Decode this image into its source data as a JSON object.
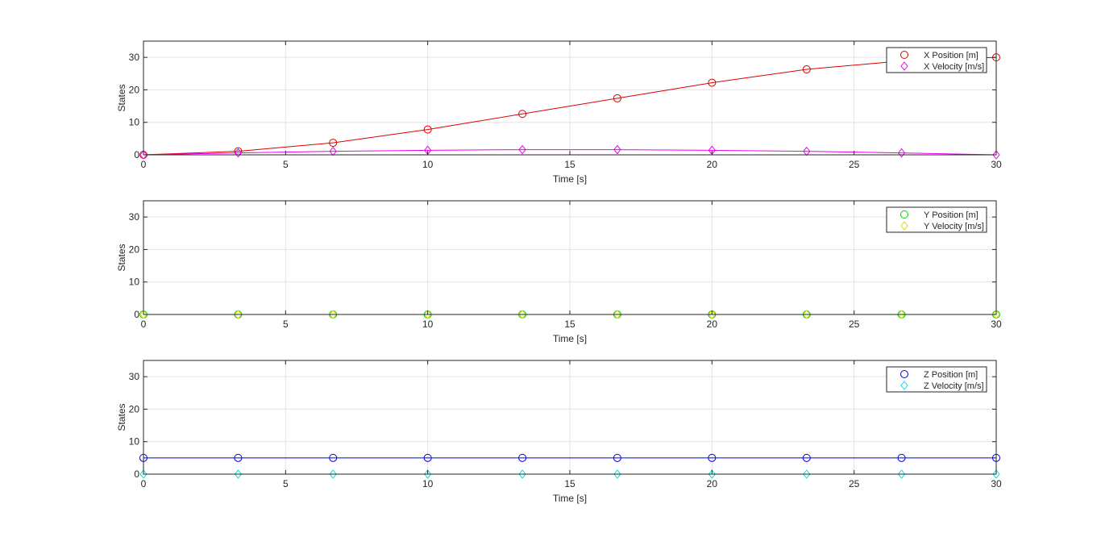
{
  "colors": {
    "x_position": "#dd0000",
    "x_velocity": "#ee00ee",
    "y_position": "#00cc00",
    "y_velocity": "#dddd00",
    "z_position": "#0000dd",
    "z_velocity": "#00dddd",
    "grid": "#e3e3e3",
    "axes": "#262626"
  },
  "chart_data": [
    {
      "type": "line",
      "xlabel": "Time [s]",
      "ylabel": "States",
      "xlim": [
        0,
        30
      ],
      "ylim": [
        0,
        35
      ],
      "xticks": [
        0,
        5,
        10,
        15,
        20,
        25,
        30
      ],
      "yticks": [
        0,
        10,
        20,
        30
      ],
      "grid": true,
      "legend_position": "top-right",
      "series": [
        {
          "name": "X Position [m]",
          "marker": "circle",
          "color_key": "x_position",
          "x": [
            0,
            3.33,
            6.67,
            10,
            13.33,
            16.67,
            20,
            23.33,
            26.67,
            30
          ],
          "y": [
            0,
            1.1,
            3.7,
            7.8,
            12.6,
            17.4,
            22.2,
            26.3,
            28.9,
            30
          ]
        },
        {
          "name": "X Velocity [m/s]",
          "marker": "diamond",
          "color_key": "x_velocity",
          "x": [
            0,
            3.33,
            6.67,
            10,
            13.33,
            16.67,
            20,
            23.33,
            26.67,
            30
          ],
          "y": [
            0,
            0.6,
            1.1,
            1.4,
            1.6,
            1.6,
            1.4,
            1.1,
            0.6,
            0
          ]
        }
      ]
    },
    {
      "type": "line",
      "xlabel": "Time [s]",
      "ylabel": "States",
      "xlim": [
        0,
        30
      ],
      "ylim": [
        0,
        35
      ],
      "xticks": [
        0,
        5,
        10,
        15,
        20,
        25,
        30
      ],
      "yticks": [
        0,
        10,
        20,
        30
      ],
      "grid": true,
      "legend_position": "top-right",
      "series": [
        {
          "name": "Y Position [m]",
          "marker": "circle",
          "color_key": "y_position",
          "x": [
            0,
            3.33,
            6.67,
            10,
            13.33,
            16.67,
            20,
            23.33,
            26.67,
            30
          ],
          "y": [
            0,
            0,
            0,
            0,
            0,
            0,
            0,
            0,
            0,
            0
          ]
        },
        {
          "name": "Y Velocity [m/s]",
          "marker": "diamond",
          "color_key": "y_velocity",
          "x": [
            0,
            3.33,
            6.67,
            10,
            13.33,
            16.67,
            20,
            23.33,
            26.67,
            30
          ],
          "y": [
            0,
            0,
            0,
            0,
            0,
            0,
            0,
            0,
            0,
            0
          ]
        }
      ]
    },
    {
      "type": "line",
      "xlabel": "Time [s]",
      "ylabel": "States",
      "xlim": [
        0,
        30
      ],
      "ylim": [
        0,
        35
      ],
      "xticks": [
        0,
        5,
        10,
        15,
        20,
        25,
        30
      ],
      "yticks": [
        0,
        10,
        20,
        30
      ],
      "grid": true,
      "legend_position": "top-right",
      "series": [
        {
          "name": "Z Position [m]",
          "marker": "circle",
          "color_key": "z_position",
          "x": [
            0,
            3.33,
            6.67,
            10,
            13.33,
            16.67,
            20,
            23.33,
            26.67,
            30
          ],
          "y": [
            5,
            5,
            5,
            5,
            5,
            5,
            5,
            5,
            5,
            5
          ]
        },
        {
          "name": "Z Velocity [m/s]",
          "marker": "diamond",
          "color_key": "z_velocity",
          "x": [
            0,
            3.33,
            6.67,
            10,
            13.33,
            16.67,
            20,
            23.33,
            26.67,
            30
          ],
          "y": [
            0,
            0,
            0,
            0,
            0,
            0,
            0,
            0,
            0,
            0
          ]
        }
      ]
    }
  ]
}
